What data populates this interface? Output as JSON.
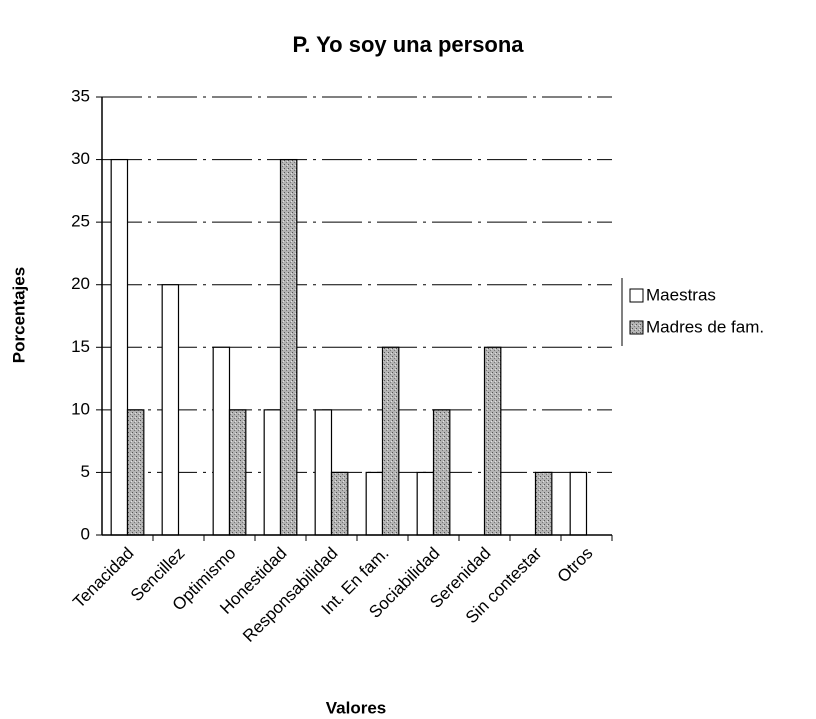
{
  "chart_data": {
    "type": "bar",
    "title": "P. Yo soy una  persona",
    "x_label": "Valores",
    "y_label": "Porcentajes",
    "categories": [
      "Tenacidad",
      "Sencillez",
      "Optimismo",
      "Honestidad",
      "Responsabilidad",
      "Int. En fam.",
      "Sociabilidad",
      "Serenidad",
      "Sin contestar",
      "Otros"
    ],
    "series": [
      {
        "name": "Maestras",
        "color": "#ffffff",
        "values": [
          30,
          20,
          15,
          10,
          10,
          5,
          5,
          0,
          0,
          5
        ]
      },
      {
        "name": "Madres de fam.",
        "color": "#a8a8a8",
        "values": [
          10,
          0,
          10,
          30,
          5,
          15,
          10,
          15,
          5,
          0
        ]
      }
    ],
    "ylim": [
      0,
      35
    ],
    "yticks": [
      0,
      5,
      10,
      15,
      20,
      25,
      30,
      35
    ],
    "grid": true,
    "legend": "right"
  }
}
